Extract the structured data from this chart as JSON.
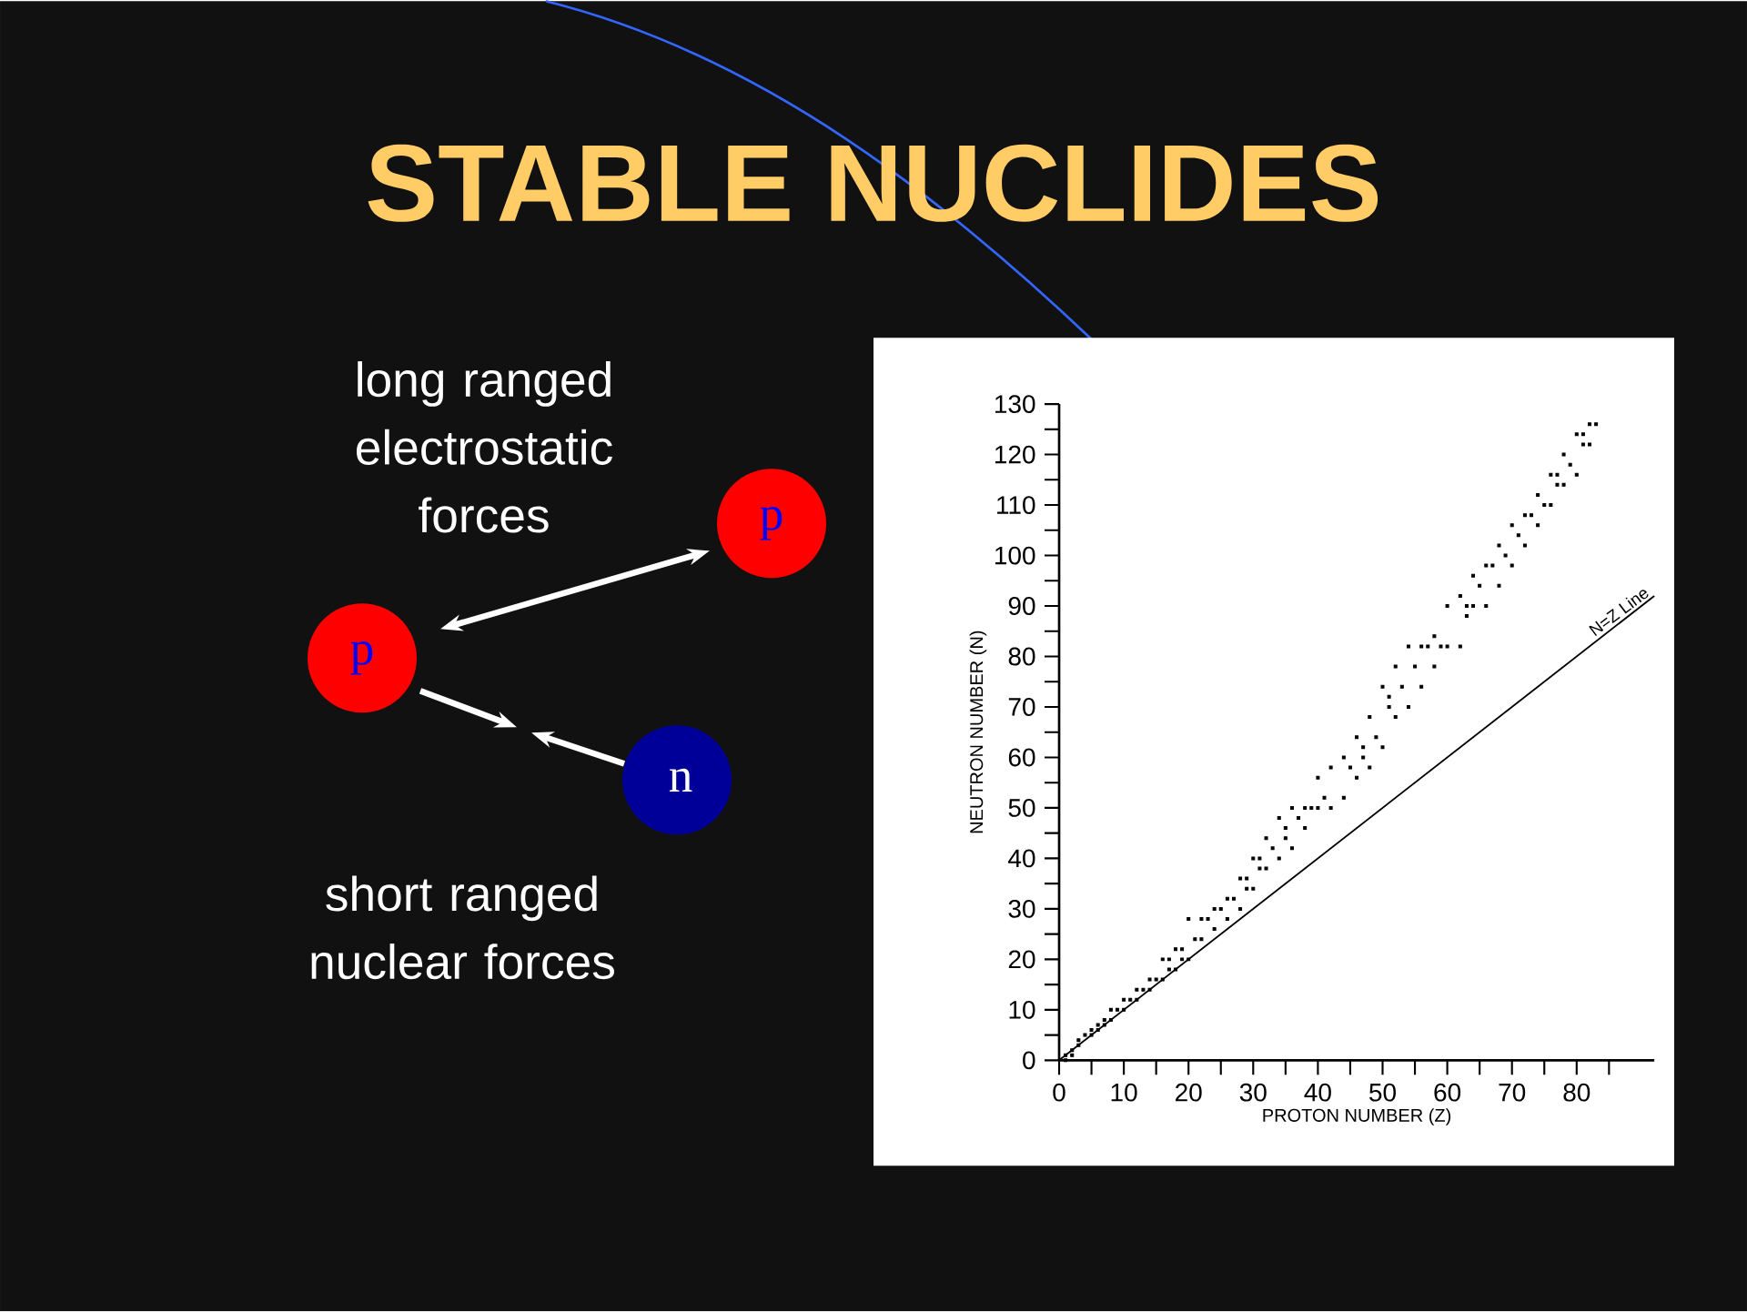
{
  "chart_data": {
    "type": "scatter",
    "title": "STABLE NUCLIDES",
    "xlabel": "PROTON NUMBER (Z)",
    "ylabel": "NEUTRON NUMBER (N)",
    "xlim": [
      0,
      92
    ],
    "ylim": [
      0,
      130
    ],
    "xticks": [
      0,
      {
        "value": 5,
        "label": null
      },
      10,
      {
        "value": 15,
        "label": null
      },
      20,
      {
        "value": 25,
        "label": null
      },
      30,
      {
        "value": 35,
        "label": null
      },
      40,
      {
        "value": 45,
        "label": null
      },
      50,
      {
        "value": 55,
        "label": null
      },
      60,
      {
        "value": 65,
        "label": null
      },
      70,
      {
        "value": 75,
        "label": null
      },
      80,
      {
        "value": 85,
        "label": null
      }
    ],
    "yticks": [
      0,
      {
        "value": 5,
        "label": null
      },
      10,
      {
        "value": 15,
        "label": null
      },
      20,
      {
        "value": 25,
        "label": null
      },
      30,
      {
        "value": 35,
        "label": null
      },
      40,
      {
        "value": 45,
        "label": null
      },
      50,
      {
        "value": 55,
        "label": null
      },
      60,
      {
        "value": 65,
        "label": null
      },
      70,
      {
        "value": 75,
        "label": null
      },
      80,
      {
        "value": 85,
        "label": null
      },
      90,
      {
        "value": 95,
        "label": null
      },
      100,
      {
        "value": 105,
        "label": null
      },
      110,
      {
        "value": 115,
        "label": null
      },
      120,
      {
        "value": 125,
        "label": null
      },
      130
    ],
    "series": [
      {
        "marker": "square",
        "color": "#000000",
        "x": [
          1,
          1,
          2,
          2,
          3,
          3,
          4,
          5,
          5,
          6,
          6,
          7,
          7,
          8,
          8,
          9,
          10,
          10,
          11,
          12,
          12,
          13,
          14,
          14,
          15,
          16,
          16,
          17,
          17,
          18,
          18,
          19,
          19,
          20,
          20,
          21,
          22,
          22,
          23,
          24,
          24,
          25,
          26,
          26,
          27,
          28,
          28,
          29,
          29,
          30,
          30,
          31,
          31,
          32,
          32,
          33,
          34,
          34,
          35,
          35,
          36,
          36,
          37,
          38,
          38,
          39,
          40,
          40,
          41,
          42,
          42,
          44,
          44,
          45,
          46,
          46,
          47,
          47,
          48,
          48,
          49,
          50,
          50,
          51,
          51,
          52,
          52,
          53,
          54,
          54,
          55,
          56,
          56,
          57,
          58,
          58,
          59,
          60,
          60,
          62,
          62,
          63,
          63,
          64,
          64,
          65,
          66,
          66,
          67,
          68,
          68,
          69,
          70,
          70,
          71,
          72,
          72,
          73,
          74,
          74,
          75,
          76,
          76,
          77,
          77,
          78,
          78,
          79,
          80,
          80,
          81,
          81,
          82,
          82,
          83
        ],
        "values": [
          0,
          1,
          1,
          2,
          3,
          4,
          5,
          5,
          6,
          6,
          7,
          7,
          8,
          8,
          10,
          10,
          10,
          12,
          12,
          12,
          14,
          14,
          14,
          16,
          16,
          16,
          20,
          18,
          20,
          18,
          22,
          20,
          22,
          20,
          28,
          24,
          24,
          28,
          28,
          26,
          30,
          30,
          28,
          32,
          32,
          30,
          36,
          34,
          36,
          34,
          40,
          38,
          40,
          38,
          44,
          42,
          40,
          48,
          44,
          46,
          42,
          50,
          48,
          46,
          50,
          50,
          50,
          56,
          52,
          50,
          58,
          52,
          60,
          58,
          56,
          64,
          60,
          62,
          58,
          68,
          64,
          62,
          74,
          70,
          72,
          68,
          78,
          74,
          70,
          82,
          78,
          74,
          82,
          82,
          78,
          84,
          82,
          82,
          90,
          82,
          92,
          88,
          90,
          90,
          96,
          94,
          90,
          98,
          98,
          94,
          102,
          100,
          98,
          106,
          104,
          102,
          108,
          108,
          106,
          112,
          110,
          110,
          116,
          114,
          116,
          114,
          120,
          118,
          116,
          124,
          122,
          124,
          122,
          126,
          126
        ]
      },
      {
        "type": "line",
        "name": "N=Z Line",
        "color": "#000000",
        "x": [
          0,
          92
        ],
        "values": [
          0,
          92
        ]
      }
    ],
    "annotations": [
      "long ranged electrostatic forces",
      "short ranged nuclear forces",
      "p",
      "p",
      "n"
    ]
  }
}
